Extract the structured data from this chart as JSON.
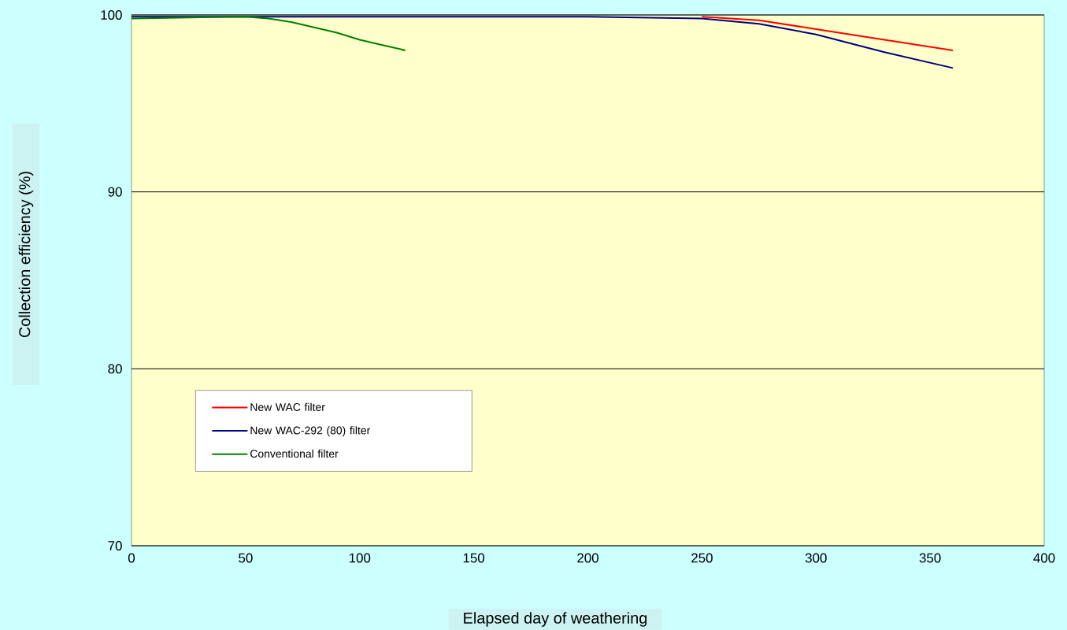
{
  "chart_data": {
    "type": "line",
    "xlabel": "Elapsed day of weathering",
    "ylabel": "Collection efficiency (%)",
    "xlim": [
      0,
      400
    ],
    "ylim": [
      70,
      100
    ],
    "xticks": [
      0,
      50,
      100,
      150,
      200,
      250,
      300,
      350,
      400
    ],
    "yticks": [
      70,
      80,
      90,
      100
    ],
    "grid": "y",
    "legend": "left",
    "marker": "none",
    "line_style": "solid",
    "series": [
      {
        "name": "New WAC filter",
        "color": "#ff0000",
        "x": [
          250,
          275,
          300,
          330,
          360
        ],
        "values": [
          99.9,
          99.7,
          99.2,
          98.6,
          98.0
        ]
      },
      {
        "name": "New WAC-292 (80) filter",
        "color": "#000080",
        "x": [
          0,
          50,
          100,
          150,
          200,
          250,
          275,
          300,
          330,
          360
        ],
        "values": [
          99.9,
          99.9,
          99.9,
          99.9,
          99.9,
          99.8,
          99.5,
          98.9,
          97.9,
          97.0
        ]
      },
      {
        "name": "Conventional filter",
        "color": "#008000",
        "x": [
          0,
          50,
          60,
          70,
          80,
          90,
          100,
          110,
          120
        ],
        "values": [
          99.8,
          99.9,
          99.8,
          99.6,
          99.3,
          99.0,
          98.6,
          98.3,
          98.0
        ]
      }
    ]
  }
}
